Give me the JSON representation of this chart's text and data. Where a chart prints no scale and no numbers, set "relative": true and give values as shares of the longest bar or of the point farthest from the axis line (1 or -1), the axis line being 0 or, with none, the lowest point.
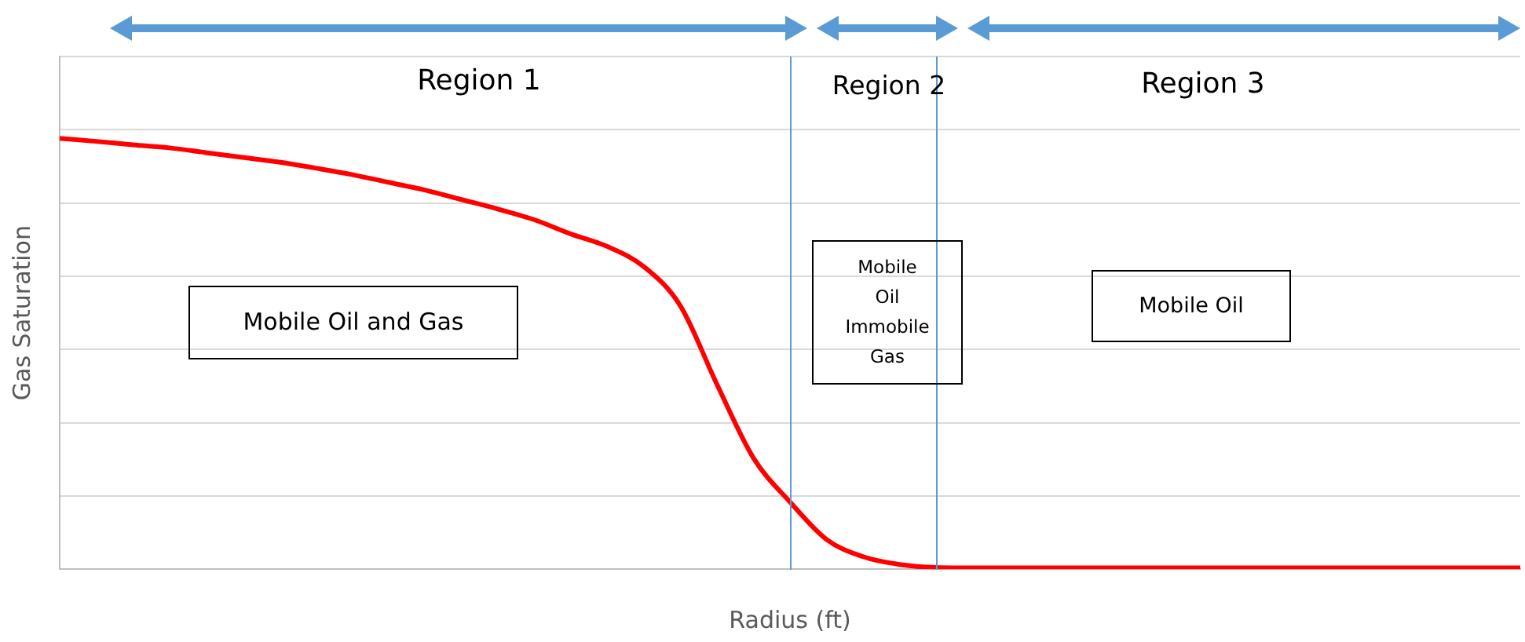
{
  "chart_data": {
    "type": "line",
    "relative": true,
    "xlabel": "Radius (ft)",
    "ylabel": "Gas Saturation",
    "grid": "y",
    "legend": false,
    "marker": "none",
    "line_style": "solid",
    "categories": [
      null,
      null,
      null,
      null,
      null,
      null,
      null,
      null,
      null,
      null,
      null,
      null,
      null,
      null,
      null,
      null,
      null,
      null,
      null,
      null,
      null,
      null,
      null,
      null,
      null,
      null,
      null,
      null,
      null,
      null,
      null,
      null,
      null,
      null,
      null,
      null,
      null,
      null,
      null,
      null,
      null
    ],
    "series": [
      {
        "color": "#ff0000",
        "values": [
          1.0,
          0.993,
          0.985,
          0.978,
          0.967,
          0.956,
          0.945,
          0.931,
          0.916,
          0.898,
          0.88,
          0.858,
          0.836,
          0.811,
          0.778,
          0.749,
          0.702,
          0.611,
          0.429,
          0.258,
          0.156,
          0.069,
          0.029,
          0.011,
          0.004,
          0.003,
          0.003,
          0.003,
          0.003,
          0.003,
          0.003,
          0.003,
          0.003,
          0.003,
          0.003,
          0.003,
          0.003,
          0.003,
          0.003,
          0.003,
          0.003
        ]
      }
    ],
    "annotations": [
      "Region 1",
      "Region 2",
      "Region 3",
      "Mobile Oil and Gas",
      "Mobile\nOil\nImmobile\nGas",
      "Mobile Oil"
    ]
  }
}
